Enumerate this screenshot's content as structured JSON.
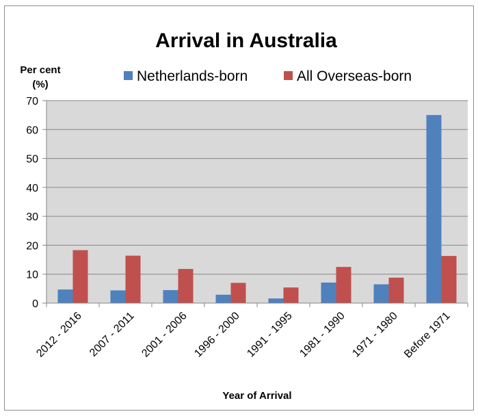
{
  "chart_data": {
    "type": "bar",
    "title": "Arrival in Australia",
    "ylabel_line1": "Per cent",
    "ylabel_line2": "(%)",
    "xlabel": "Year of Arrival",
    "categories": [
      "2012 - 2016",
      "2007 - 2011",
      "2001 - 2006",
      "1996 - 2000",
      "1991 - 1995",
      "1981 - 1990",
      "1971 - 1980",
      "Before 1971"
    ],
    "series": [
      {
        "name": "Netherlands-born",
        "color": "#4f81bd",
        "values": [
          4.7,
          4.4,
          4.5,
          2.9,
          1.6,
          7.1,
          6.5,
          65.0
        ]
      },
      {
        "name": "All Overseas-born",
        "color": "#c0504d",
        "values": [
          18.3,
          16.4,
          11.8,
          7.0,
          5.4,
          12.5,
          8.8,
          16.3
        ]
      }
    ],
    "ylim": [
      0,
      70
    ],
    "yticks": [
      0,
      10,
      20,
      30,
      40,
      50,
      60,
      70
    ],
    "grid": true,
    "plot_background": "#d9d9d9",
    "legend_position": "top"
  }
}
